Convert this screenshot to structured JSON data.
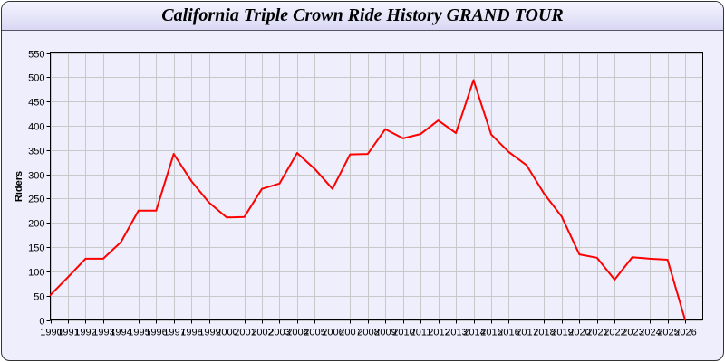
{
  "chart_data": {
    "type": "line",
    "title": "California Triple Crown Ride History GRAND TOUR",
    "xlabel": "",
    "ylabel": "Riders",
    "ylim": [
      0,
      550
    ],
    "xlim": [
      1990,
      2027
    ],
    "grid": true,
    "yticks": [
      0,
      50,
      100,
      150,
      200,
      250,
      300,
      350,
      400,
      450,
      500,
      550
    ],
    "x": [
      1990,
      1991,
      1992,
      1993,
      1994,
      1995,
      1996,
      1997,
      1998,
      1999,
      2000,
      2001,
      2002,
      2003,
      2004,
      2005,
      2006,
      2007,
      2008,
      2009,
      2010,
      2011,
      2012,
      2013,
      2014,
      2015,
      2016,
      2017,
      2018,
      2019,
      2020,
      2021,
      2022,
      2023,
      2024,
      2025,
      2026
    ],
    "series": [
      {
        "color": "#ff0000",
        "values": [
          51,
          88,
          126,
          126,
          160,
          225,
          225,
          342,
          286,
          242,
          211,
          212,
          270,
          281,
          344,
          311,
          270,
          341,
          342,
          393,
          374,
          383,
          411,
          385,
          494,
          382,
          346,
          319,
          260,
          213,
          135,
          128,
          83,
          129,
          126,
          124,
          0
        ]
      }
    ]
  }
}
